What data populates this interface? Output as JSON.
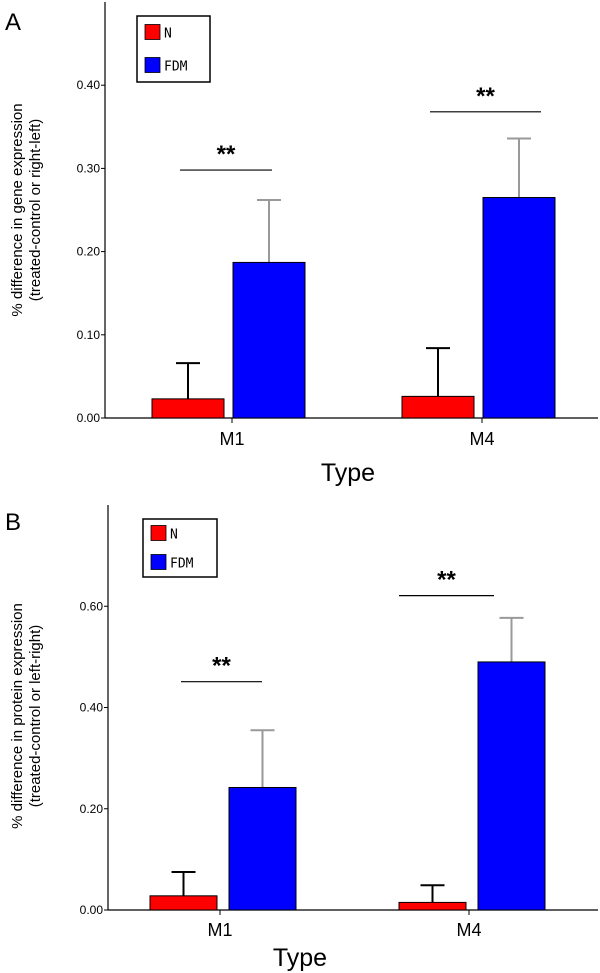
{
  "colors": {
    "n": "#ff0000",
    "fdm": "#0000ff",
    "n_err": "#000000",
    "fdm_err": "#999999",
    "axis": "#000000"
  },
  "chart_data": [
    {
      "type": "bar",
      "panel_label": "A",
      "ylabel_line1": "% difference in gene expression",
      "ylabel_line2": "(treated-control or right-left)",
      "xlabel": "Type",
      "categories": [
        "M1",
        "M4"
      ],
      "legend": [
        "N",
        "FDM"
      ],
      "series": [
        {
          "name": "N",
          "values": [
            0.023,
            0.026
          ],
          "errors": [
            0.043,
            0.058
          ]
        },
        {
          "name": "FDM",
          "values": [
            0.187,
            0.265
          ],
          "errors": [
            0.075,
            0.071
          ]
        }
      ],
      "significance": [
        "**",
        "**"
      ],
      "yticks": [
        0.0,
        0.1,
        0.2,
        0.3,
        0.4
      ],
      "ytick_labels": [
        "0.00",
        "0.10",
        "0.20",
        "0.30",
        "0.40"
      ],
      "ylim": [
        0,
        0.5
      ]
    },
    {
      "type": "bar",
      "panel_label": "B",
      "ylabel_line1": "% difference in protein expression",
      "ylabel_line2": "(treated-control or left-right)",
      "xlabel": "Type",
      "categories": [
        "M1",
        "M4"
      ],
      "legend": [
        "N",
        "FDM"
      ],
      "series": [
        {
          "name": "N",
          "values": [
            0.028,
            0.015
          ],
          "errors": [
            0.047,
            0.034
          ]
        },
        {
          "name": "FDM",
          "values": [
            0.242,
            0.49
          ],
          "errors": [
            0.113,
            0.087
          ]
        }
      ],
      "significance": [
        "**",
        "**"
      ],
      "yticks": [
        0.0,
        0.2,
        0.4,
        0.6
      ],
      "ytick_labels": [
        "0.00",
        "0.20",
        "0.40",
        "0.60"
      ],
      "ylim": [
        0,
        0.8
      ]
    }
  ]
}
